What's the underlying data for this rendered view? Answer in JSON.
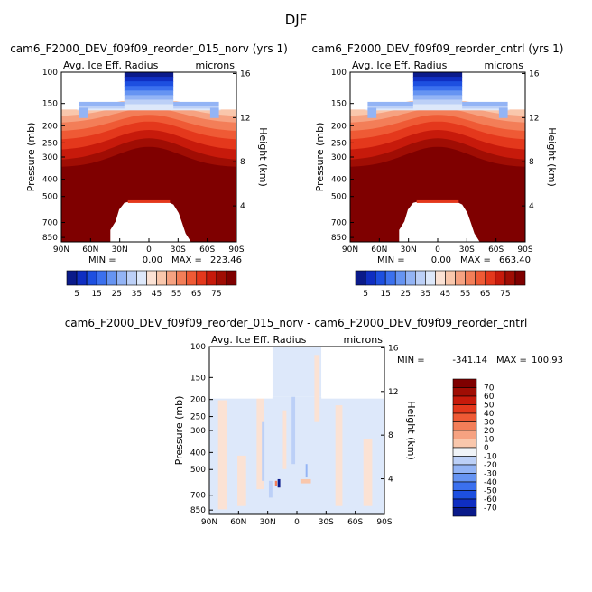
{
  "figure_title": "DJF",
  "colors": {
    "blues": [
      "#0a1a8a",
      "#0f2ec2",
      "#1d4fe0",
      "#3b70ee",
      "#6694f2",
      "#93b4f5",
      "#bcd0f7",
      "#dde8fa"
    ],
    "reds": [
      "#fbe2d4",
      "#f9c7ac",
      "#f6a281",
      "#f37e58",
      "#ef5a35",
      "#e4381c",
      "#c71a0b",
      "#a00d04",
      "#7f0000"
    ],
    "diff_zero": "#f0f4f8"
  },
  "chart_data": [
    {
      "type": "heatmap",
      "title": "cam6_F2000_DEV_f09f09_reorder_015_norv (yrs 1)",
      "variable_label": "Avg. Ice Eff. Radius",
      "units_label": "microns",
      "ylabel": "Pressure (mb)",
      "y2label": "Height (km)",
      "x_ticks": [
        "90N",
        "60N",
        "30N",
        "0",
        "30S",
        "60S",
        "90S"
      ],
      "y_ticks": [
        "100",
        "150",
        "200",
        "250",
        "300",
        "400",
        "500",
        "700",
        "850"
      ],
      "y_range_mb": [
        100,
        900
      ],
      "y2_ticks": [
        "16",
        "12",
        "8",
        "4"
      ],
      "min_label": "MIN =",
      "min_value": "0.00",
      "max_label": "MAX =",
      "max_value": "223.46",
      "colorbar_labels": [
        "5",
        "15",
        "25",
        "35",
        "45",
        "55",
        "65",
        "75"
      ]
    },
    {
      "type": "heatmap",
      "title": "cam6_F2000_DEV_f09f09_reorder_cntrl (yrs 1)",
      "variable_label": "Avg. Ice Eff. Radius",
      "units_label": "microns",
      "ylabel": "Pressure (mb)",
      "y2label": "Height (km)",
      "x_ticks": [
        "90N",
        "60N",
        "30N",
        "0",
        "30S",
        "60S",
        "90S"
      ],
      "y_ticks": [
        "100",
        "150",
        "200",
        "250",
        "300",
        "400",
        "500",
        "700",
        "850"
      ],
      "y_range_mb": [
        100,
        900
      ],
      "y2_ticks": [
        "16",
        "12",
        "8",
        "4"
      ],
      "min_label": "MIN =",
      "min_value": "0.00",
      "max_label": "MAX =",
      "max_value": "663.40",
      "colorbar_labels": [
        "5",
        "15",
        "25",
        "35",
        "45",
        "55",
        "65",
        "75"
      ]
    },
    {
      "type": "heatmap",
      "title": "cam6_F2000_DEV_f09f09_reorder_015_norv - cam6_F2000_DEV_f09f09_reorder_cntrl",
      "variable_label": "Avg. Ice Eff. Radius",
      "units_label": "microns",
      "ylabel": "Pressure (mb)",
      "y2label": "Height (km)",
      "x_ticks": [
        "90N",
        "60N",
        "30N",
        "0",
        "30S",
        "60S",
        "90S"
      ],
      "y_ticks": [
        "100",
        "150",
        "200",
        "250",
        "300",
        "400",
        "500",
        "700",
        "850"
      ],
      "y_range_mb": [
        100,
        900
      ],
      "y2_ticks": [
        "16",
        "12",
        "8",
        "4"
      ],
      "min_label": "MIN =",
      "min_value": "-341.14",
      "max_label": "MAX =",
      "max_value": "100.93",
      "colorbar_labels": [
        "70",
        "60",
        "50",
        "40",
        "30",
        "20",
        "10",
        "0",
        "-10",
        "-20",
        "-30",
        "-40",
        "-50",
        "-60",
        "-70"
      ]
    }
  ]
}
